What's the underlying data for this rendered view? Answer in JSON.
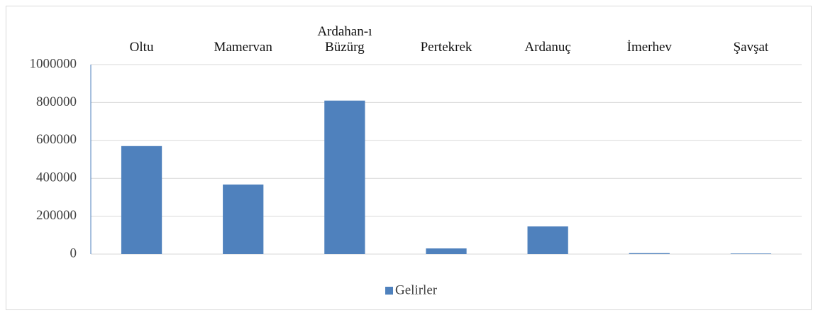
{
  "chart_data": {
    "type": "bar",
    "categories": [
      "Oltu",
      "Mamervan",
      "Ardahan-ı Büzürg",
      "Pertekrek",
      "Ardanuç",
      "İmerhev",
      "Şavşat"
    ],
    "series": [
      {
        "name": "Gelirler",
        "color": "#4f81bd",
        "values": [
          570000,
          367000,
          810000,
          30000,
          146000,
          5000,
          3000
        ]
      }
    ],
    "ylim": [
      0,
      1000000
    ],
    "yticks": [
      0,
      200000,
      400000,
      600000,
      800000,
      1000000
    ],
    "grid": true,
    "legend": "bottom"
  }
}
